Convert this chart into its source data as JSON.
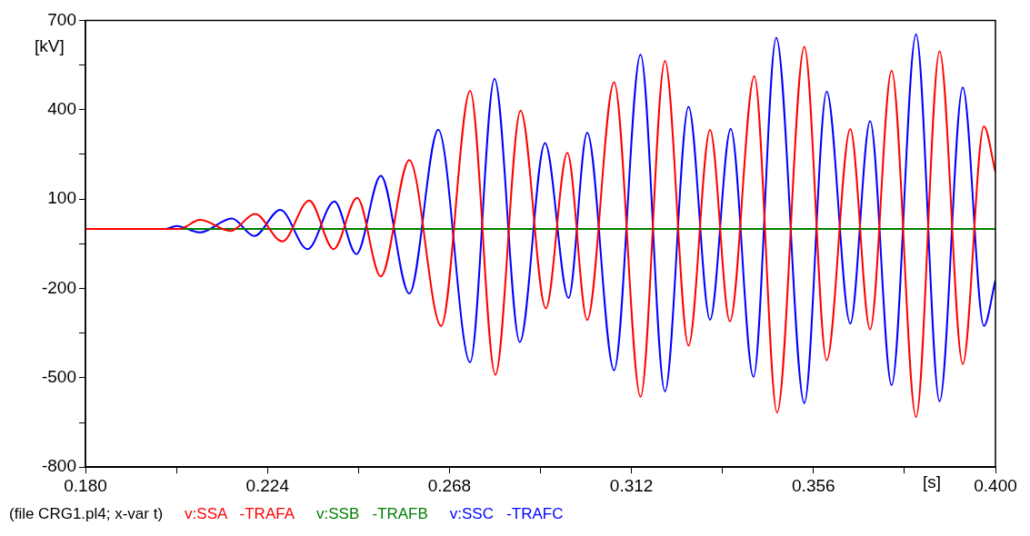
{
  "chart_data": {
    "type": "line",
    "xlabel": "[s]",
    "ylabel": "[kV]",
    "annotations": [
      "(file CRG1.pl4; x-var t)"
    ],
    "legend": "bottom",
    "marker": "none",
    "line_style": "solid",
    "grid": false,
    "xlim": [
      0.18,
      0.4
    ],
    "xticks": [
      {
        "value": 0.18,
        "label": "0.180"
      },
      {
        "value": 0.202,
        "label": null
      },
      {
        "value": 0.224,
        "label": "0.224"
      },
      {
        "value": 0.246,
        "label": null
      },
      {
        "value": 0.268,
        "label": "0.268"
      },
      {
        "value": 0.29,
        "label": null
      },
      {
        "value": 0.312,
        "label": "0.312"
      },
      {
        "value": 0.334,
        "label": null
      },
      {
        "value": 0.356,
        "label": "0.356"
      },
      {
        "value": 0.378,
        "label": null
      },
      {
        "value": 0.4,
        "label": "0.400"
      }
    ],
    "ylim": [
      -800,
      700
    ],
    "yticks": [
      700,
      {
        "value": 550,
        "label": null
      },
      400,
      {
        "value": 250,
        "label": null
      },
      100,
      {
        "value": -50,
        "label": null
      },
      -200,
      {
        "value": -350,
        "label": null
      },
      -500,
      {
        "value": -650,
        "label": null
      },
      -800
    ],
    "series": [
      {
        "name": "v:SSA   -TRAFA",
        "color": "#ff0000",
        "x": [
          0.18,
          0.2027,
          0.2077,
          0.2151,
          0.221,
          0.2276,
          0.2341,
          0.24,
          0.2457,
          0.2514,
          0.2583,
          0.266,
          0.273,
          0.2791,
          0.2852,
          0.2913,
          0.2965,
          0.3013,
          0.3078,
          0.3142,
          0.3201,
          0.3258,
          0.331,
          0.3358,
          0.3417,
          0.3472,
          0.3538,
          0.3592,
          0.3649,
          0.3697,
          0.3749,
          0.3808,
          0.3865,
          0.3921,
          0.3972,
          0.4
        ],
        "values": [
          0,
          0,
          30,
          -7,
          50,
          -42,
          95,
          -68,
          104,
          -160,
          231,
          -326,
          463,
          -490,
          397,
          -267,
          255,
          -306,
          492,
          -564,
          564,
          -392,
          332,
          -311,
          513,
          -617,
          611,
          -442,
          335,
          -338,
          531,
          -632,
          596,
          -454,
          344,
          190
        ]
      },
      {
        "name": "v:SSB   -TRAFB",
        "color": "#008000",
        "x": [
          0.18,
          0.4
        ],
        "values": [
          0,
          0
        ]
      },
      {
        "name": "v:SSC   -TRAFC",
        "color": "#0000ff",
        "x": [
          0.18,
          0.1994,
          0.202,
          0.2077,
          0.2154,
          0.2208,
          0.2271,
          0.2337,
          0.2402,
          0.2455,
          0.2514,
          0.2583,
          0.2653,
          0.273,
          0.2789,
          0.285,
          0.2911,
          0.2968,
          0.3013,
          0.3078,
          0.3142,
          0.3201,
          0.3258,
          0.331,
          0.336,
          0.3415,
          0.347,
          0.3538,
          0.3592,
          0.3649,
          0.3697,
          0.3749,
          0.3808,
          0.3865,
          0.3921,
          0.3972,
          0.4
        ],
        "values": [
          0,
          0,
          10,
          -12,
          35,
          -24,
          64,
          -68,
          92,
          -85,
          178,
          -217,
          333,
          -448,
          504,
          -380,
          288,
          -232,
          323,
          -475,
          585,
          -546,
          410,
          -305,
          336,
          -497,
          642,
          -585,
          461,
          -318,
          362,
          -525,
          653,
          -579,
          475,
          -326,
          -172
        ]
      }
    ]
  }
}
